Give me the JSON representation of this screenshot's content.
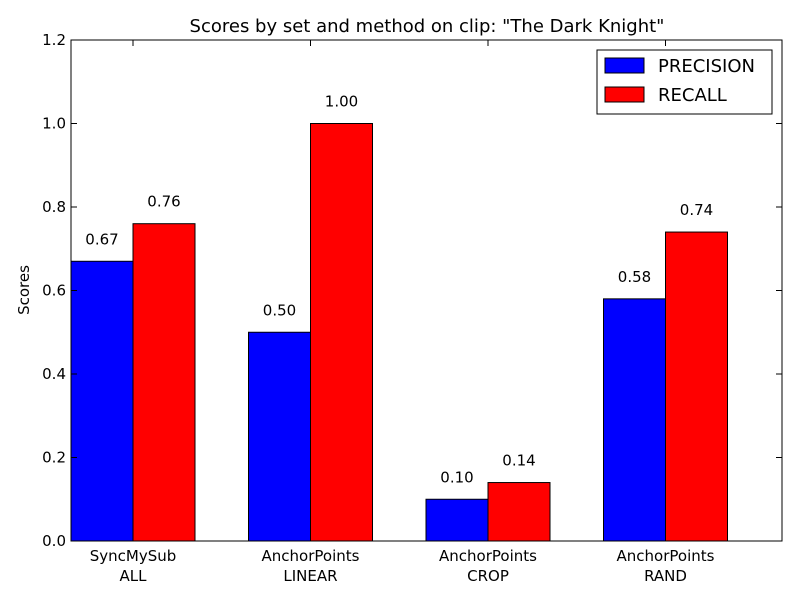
{
  "chart_data": {
    "type": "bar",
    "title": "Scores by set and method on clip: \"The Dark Knight\"",
    "xlabel": "",
    "ylabel": "Scores",
    "ylim": [
      0,
      1.2
    ],
    "yticks": [
      "0.0",
      "0.2",
      "0.4",
      "0.6",
      "0.8",
      "1.0",
      "1.2"
    ],
    "categories": [
      [
        "SyncMySub",
        "ALL"
      ],
      [
        "AnchorPoints",
        "LINEAR"
      ],
      [
        "AnchorPoints",
        "CROP"
      ],
      [
        "AnchorPoints",
        "RAND"
      ]
    ],
    "series": [
      {
        "name": "PRECISION",
        "color": "#0000ff",
        "values": [
          0.67,
          0.5,
          0.1,
          0.58
        ],
        "labels": [
          "0.67",
          "0.50",
          "0.10",
          "0.58"
        ]
      },
      {
        "name": "RECALL",
        "color": "#ff0000",
        "values": [
          0.76,
          1.0,
          0.14,
          0.74
        ],
        "labels": [
          "0.76",
          "1.00",
          "0.14",
          "0.74"
        ]
      }
    ],
    "legend": "top-right",
    "grid": false
  }
}
